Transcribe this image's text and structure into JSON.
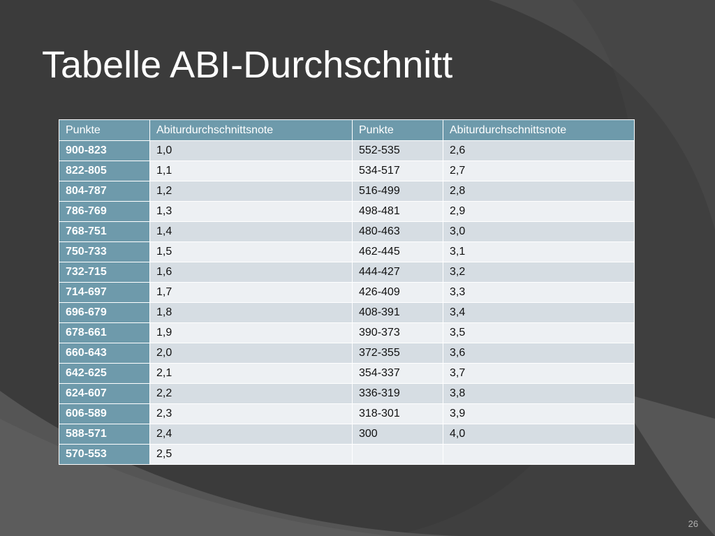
{
  "slide": {
    "title": "Tabelle ABI-Durchschnitt",
    "page_number": "26"
  },
  "table": {
    "headers": [
      "Punkte",
      "Abiturdurchschnittsnote",
      "Punkte",
      "Abiturdurchschnittsnote"
    ],
    "rows": [
      [
        "900-823",
        "1,0",
        "552-535",
        "2,6"
      ],
      [
        "822-805",
        "1,1",
        "534-517",
        "2,7"
      ],
      [
        "804-787",
        "1,2",
        "516-499",
        "2,8"
      ],
      [
        "786-769",
        "1,3",
        "498-481",
        "2,9"
      ],
      [
        "768-751",
        "1,4",
        "480-463",
        "3,0"
      ],
      [
        "750-733",
        "1,5",
        "462-445",
        "3,1"
      ],
      [
        "732-715",
        "1,6",
        "444-427",
        "3,2"
      ],
      [
        "714-697",
        "1,7",
        "426-409",
        "3,3"
      ],
      [
        "696-679",
        "1,8",
        "408-391",
        "3,4"
      ],
      [
        "678-661",
        "1,9",
        "390-373",
        "3,5"
      ],
      [
        "660-643",
        "2,0",
        "372-355",
        "3,6"
      ],
      [
        "642-625",
        "2,1",
        "354-337",
        "3,7"
      ],
      [
        "624-607",
        "2,2",
        "336-319",
        "3,8"
      ],
      [
        "606-589",
        "2,3",
        "318-301",
        "3,9"
      ],
      [
        "588-571",
        "2,4",
        "300",
        "4,0"
      ],
      [
        "570-553",
        "2,5",
        "",
        ""
      ]
    ]
  },
  "colors": {
    "background": "#3b3b3b",
    "accent": "#6e9aab",
    "row_light": "#edf0f3",
    "row_dark": "#d6dde3"
  }
}
